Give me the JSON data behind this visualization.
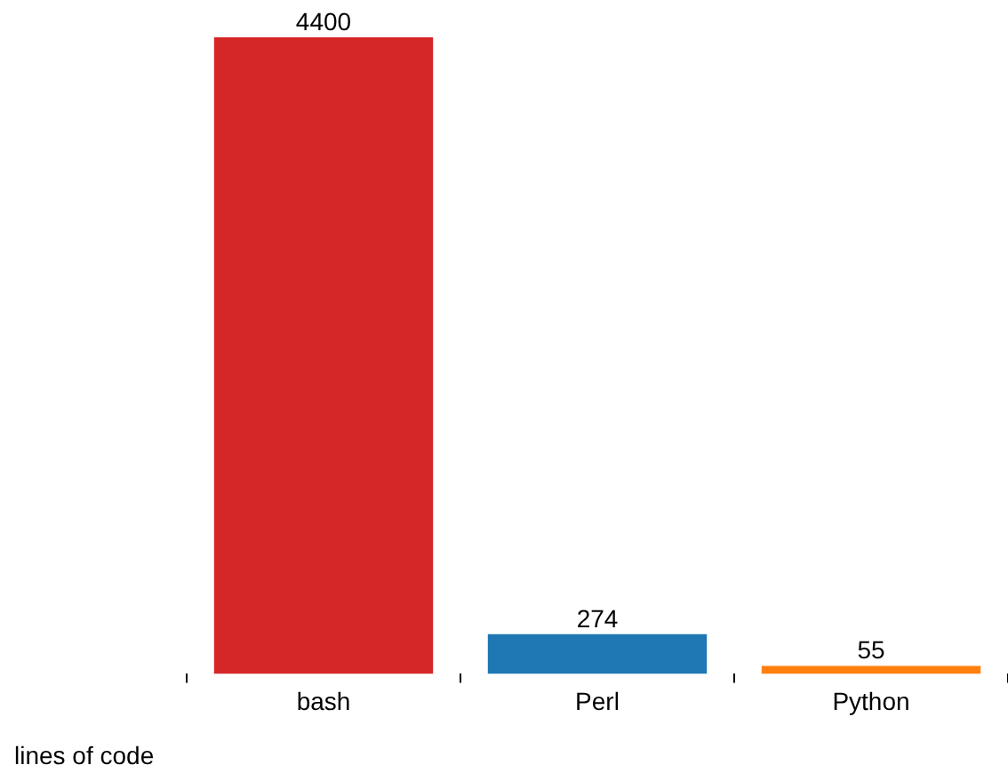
{
  "chart_data": {
    "type": "bar",
    "categories": [
      "bash",
      "Perl",
      "Python"
    ],
    "values": [
      4400,
      274,
      55
    ],
    "colors": [
      "#d62728",
      "#1f77b4",
      "#ff7f0e"
    ],
    "data_labels": true,
    "legend": false,
    "grid": false,
    "tick_labels": "x",
    "annotations": [
      "lines of code"
    ]
  }
}
